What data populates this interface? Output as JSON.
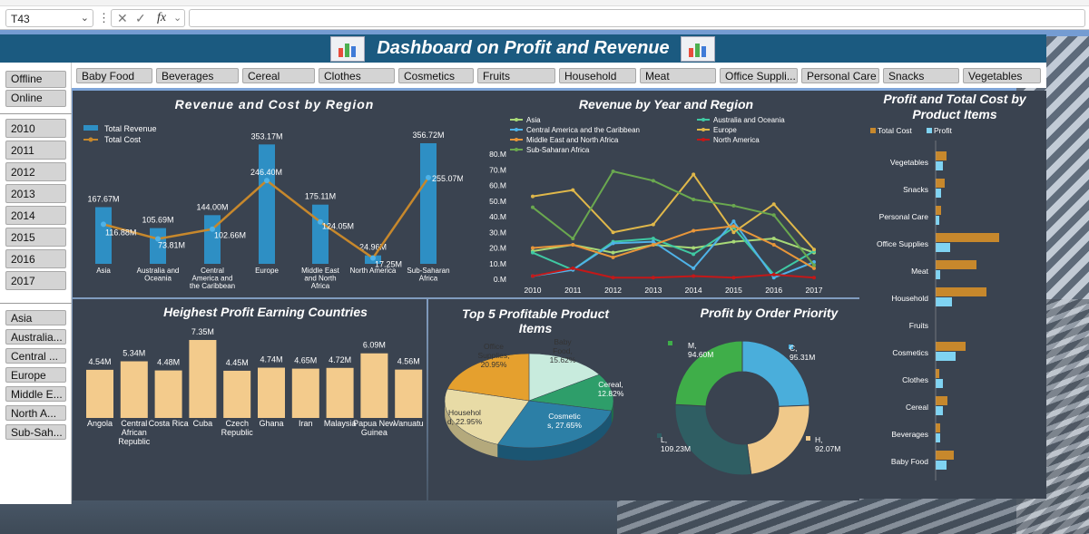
{
  "formula_bar": {
    "cell_ref": "T43",
    "cancel_icon": "✕",
    "enter_icon": "✓",
    "fx_label": "fx"
  },
  "title": "Dashboard on Profit and Revenue",
  "slicers": {
    "channels": [
      "Offline",
      "Online"
    ],
    "years": [
      "2010",
      "2011",
      "2012",
      "2013",
      "2014",
      "2015",
      "2016",
      "2017"
    ],
    "regions": [
      "Asia",
      "Australia...",
      "Central ...",
      "Europe",
      "Middle E...",
      "North A...",
      "Sub-Sah..."
    ],
    "items": [
      "Baby Food",
      "Beverages",
      "Cereal",
      "Clothes",
      "Cosmetics",
      "Fruits",
      "Household",
      "Meat",
      "Office Suppli...",
      "Personal Care",
      "Snacks",
      "Vegetables"
    ]
  },
  "charts": {
    "region": {
      "title": "Revenue and Cost by Region",
      "legend": [
        "Total Revenue",
        "Total Cost"
      ],
      "categories": [
        "Asia",
        "Australia and Oceania",
        "Central America and the Caribbean",
        "Europe",
        "Middle East and North Africa",
        "North America",
        "Sub-Saharan Africa"
      ],
      "revenue": [
        167.67,
        105.69,
        144.0,
        353.17,
        175.11,
        24.96,
        356.72
      ],
      "cost": [
        116.88,
        73.81,
        102.66,
        246.4,
        124.05,
        17.25,
        255.07
      ],
      "revenue_labels": [
        "167.67M",
        "105.69M",
        "144.00M",
        "353.17M",
        "175.11M",
        "24.96M",
        "356.72M"
      ],
      "cost_labels": [
        "116.88M",
        "73.81M",
        "102.66M",
        "246.40M",
        "124.05M",
        "17.25M",
        "255.07M"
      ]
    },
    "year": {
      "title": "Revenue by Year and Region",
      "x": [
        "2010",
        "2011",
        "2012",
        "2013",
        "2014",
        "2015",
        "2016",
        "2017"
      ],
      "ylim": [
        0,
        80
      ],
      "yticks": [
        "0.M",
        "10.M",
        "20.M",
        "30.M",
        "40.M",
        "50.M",
        "60.M",
        "70.M",
        "80.M"
      ],
      "series": [
        {
          "name": "Asia",
          "color": "#a8d977",
          "values": [
            18,
            22,
            17,
            22,
            20,
            24,
            26,
            17
          ]
        },
        {
          "name": "Australia and Oceania",
          "color": "#3fc9a3",
          "values": [
            17,
            6,
            24,
            26,
            16,
            33,
            3,
            18
          ]
        },
        {
          "name": "Central America and the Caribbean",
          "color": "#4fb3e8",
          "values": [
            2,
            6,
            23,
            24,
            7,
            37,
            1,
            11
          ]
        },
        {
          "name": "Europe",
          "color": "#e0b84a",
          "values": [
            53,
            57,
            30,
            35,
            67,
            30,
            48,
            19
          ]
        },
        {
          "name": "Middle East and North Africa",
          "color": "#e8963a",
          "values": [
            20,
            22,
            14,
            22,
            31,
            34,
            22,
            7
          ]
        },
        {
          "name": "North America",
          "color": "#c41818",
          "values": [
            2,
            7,
            1,
            1,
            2,
            1,
            3,
            1
          ]
        },
        {
          "name": "Sub-Saharan Africa",
          "color": "#6aa84f",
          "values": [
            46,
            26,
            69,
            63,
            51,
            47,
            41,
            9
          ]
        }
      ]
    },
    "items": {
      "title": "Profit and Total Cost by Product Items",
      "legend": [
        "Total Cost",
        "Profit"
      ],
      "categories": [
        "Vegetables",
        "Snacks",
        "Personal Care",
        "Office Supplies",
        "Meat",
        "Household",
        "Fruits",
        "Cosmetics",
        "Clothes",
        "Cereal",
        "Beverages",
        "Baby Food"
      ],
      "cost": [
        12,
        10,
        6,
        70,
        45,
        56,
        0,
        33,
        4,
        13,
        5,
        20
      ],
      "profit": [
        8,
        6,
        4,
        16,
        5,
        18,
        0,
        22,
        8,
        8,
        5,
        12
      ]
    },
    "countries": {
      "title": "Heighest Profit Earning Countries",
      "categories": [
        "Angola",
        "Central African Republic",
        "Costa Rica",
        "Cuba",
        "Czech Republic",
        "Ghana",
        "Iran",
        "Malaysia",
        "Papua New Guinea",
        "Vanuatu"
      ],
      "values": [
        4.54,
        5.34,
        4.48,
        7.35,
        4.45,
        4.74,
        4.65,
        4.72,
        6.09,
        4.56
      ],
      "labels": [
        "4.54M",
        "5.34M",
        "4.48M",
        "7.35M",
        "4.45M",
        "4.74M",
        "4.65M",
        "4.72M",
        "6.09M",
        "4.56M"
      ]
    },
    "top5": {
      "title": "Top 5 Profitable Product Items",
      "slices": [
        {
          "name": "Baby Food",
          "label": "Baby Food, 15.62%",
          "value": 15.62,
          "color": "#c8ebdd"
        },
        {
          "name": "Cereal",
          "label": "Cereal, 12.82%",
          "value": 12.82,
          "color": "#2e9e6a"
        },
        {
          "name": "Cosmetics",
          "label": "Cosmetic s, 27.65%",
          "value": 27.65,
          "color": "#2c7fa6"
        },
        {
          "name": "Household",
          "label": "Househol d, 22.95%",
          "value": 22.95,
          "color": "#e8dba6"
        },
        {
          "name": "Office Supplies",
          "label": "Office Supplies, 20.95%",
          "value": 20.95,
          "color": "#e5a02e"
        }
      ]
    },
    "priority": {
      "title": "Profit by Order Priority",
      "slices": [
        {
          "name": "C",
          "label": "C, 95.31M",
          "value": 95.31,
          "color": "#4aaedb"
        },
        {
          "name": "H",
          "label": "H, 92.07M",
          "value": 92.07,
          "color": "#f0c98a"
        },
        {
          "name": "L",
          "label": "L, 109.23M",
          "value": 109.23,
          "color": "#2f5e63"
        },
        {
          "name": "M",
          "label": "M, 94.60M",
          "value": 94.6,
          "color": "#3fae49"
        }
      ]
    }
  }
}
